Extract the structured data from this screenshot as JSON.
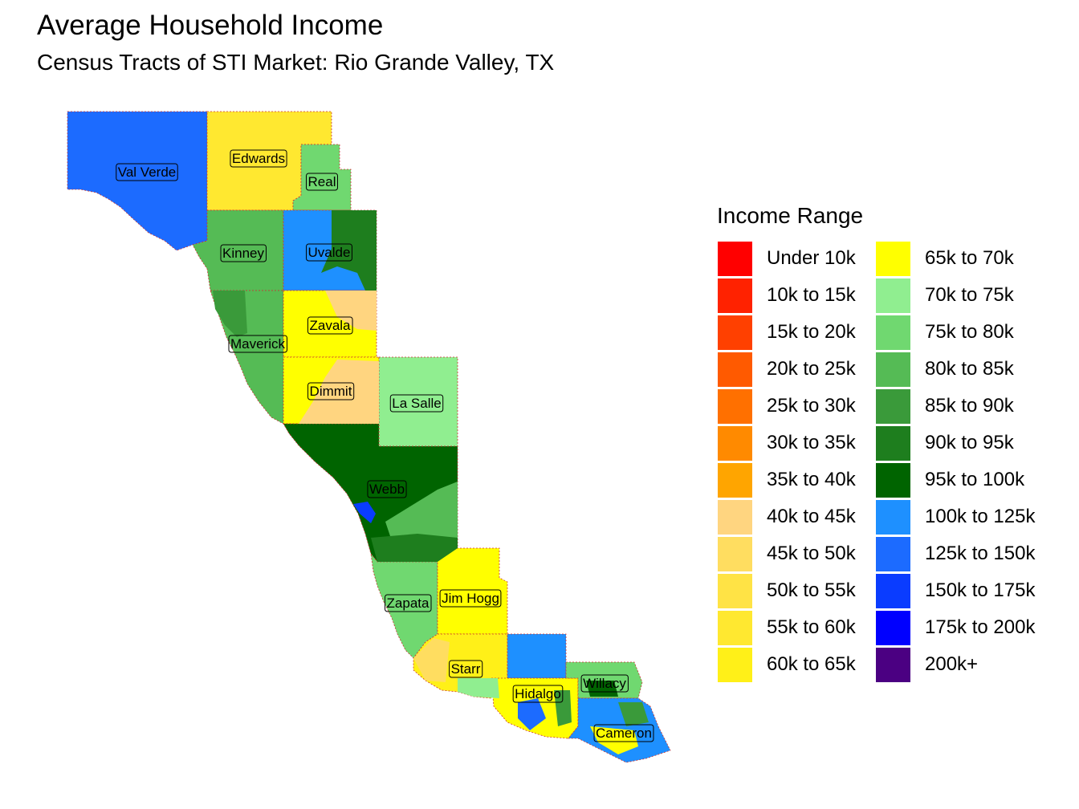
{
  "title": "Average Household Income",
  "subtitle": "Census Tracts of STI Market: Rio Grande Valley, TX",
  "legend": {
    "title": "Income Range",
    "items": [
      {
        "label": "Under 10k",
        "color": "#FF0000"
      },
      {
        "label": "10k to 15k",
        "color": "#FF2200"
      },
      {
        "label": "15k to 20k",
        "color": "#FF4000"
      },
      {
        "label": "20k to 25k",
        "color": "#FF5A00"
      },
      {
        "label": "25k to 30k",
        "color": "#FF7000"
      },
      {
        "label": "30k to 35k",
        "color": "#FF8A00"
      },
      {
        "label": "35k to 40k",
        "color": "#FFA500"
      },
      {
        "label": "40k to 45k",
        "color": "#FFD580"
      },
      {
        "label": "45k to 50k",
        "color": "#FFDD60"
      },
      {
        "label": "50k to 55k",
        "color": "#FFE345"
      },
      {
        "label": "55k to 60k",
        "color": "#FFE830"
      },
      {
        "label": "60k to 65k",
        "color": "#FFF018"
      },
      {
        "label": "65k to 70k",
        "color": "#FFFF00"
      },
      {
        "label": "70k to 75k",
        "color": "#90EE90"
      },
      {
        "label": "75k to 80k",
        "color": "#70D870"
      },
      {
        "label": "80k to 85k",
        "color": "#55BB55"
      },
      {
        "label": "85k to 90k",
        "color": "#3A9A3A"
      },
      {
        "label": "90k to 95k",
        "color": "#1E7E1E"
      },
      {
        "label": "95k to 100k",
        "color": "#006400"
      },
      {
        "label": "100k to 125k",
        "color": "#1E90FF"
      },
      {
        "label": "125k to 150k",
        "color": "#1C6BFF"
      },
      {
        "label": "150k to 175k",
        "color": "#0A3CFF"
      },
      {
        "label": "175k to 200k",
        "color": "#0000FF"
      },
      {
        "label": "200k+",
        "color": "#4B0082"
      }
    ]
  },
  "counties": [
    {
      "name": "Val Verde",
      "color": "#1C6BFF"
    },
    {
      "name": "Edwards",
      "color": "#FFE830"
    },
    {
      "name": "Real",
      "color": "#70D870"
    },
    {
      "name": "Kinney",
      "color": "#55BB55"
    },
    {
      "name": "Uvalde",
      "color": "#1E90FF"
    },
    {
      "name": "Zavala",
      "color": "#FFFF00"
    },
    {
      "name": "Maverick",
      "color": "#55BB55"
    },
    {
      "name": "Dimmit",
      "color": "#FFFF00"
    },
    {
      "name": "La Salle",
      "color": "#90EE90"
    },
    {
      "name": "Webb",
      "color": "#006400"
    },
    {
      "name": "Zapata",
      "color": "#70D870"
    },
    {
      "name": "Jim Hogg",
      "color": "#FFFF00"
    },
    {
      "name": "Starr",
      "color": "#FFF018"
    },
    {
      "name": "Hidalgo",
      "color": "#FFFF00"
    },
    {
      "name": "Willacy",
      "color": "#70D870"
    },
    {
      "name": "Cameron",
      "color": "#1E90FF"
    }
  ]
}
